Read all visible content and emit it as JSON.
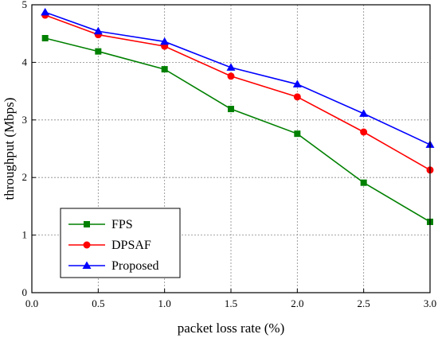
{
  "chart_data": {
    "type": "line",
    "title": "",
    "xlabel": "packet loss rate (%)",
    "ylabel": "throughput (Mbps)",
    "xlim": [
      0.0,
      3.0
    ],
    "ylim": [
      0,
      5
    ],
    "xticks": [
      "0.0",
      "0.5",
      "1.0",
      "1.5",
      "2.0",
      "2.5",
      "3.0"
    ],
    "yticks": [
      "0",
      "1",
      "2",
      "3",
      "4",
      "5"
    ],
    "grid": true,
    "legend_position": "bottom-left",
    "x": [
      0.1,
      0.5,
      1.0,
      1.5,
      2.0,
      2.5,
      3.0
    ],
    "series": [
      {
        "name": "FPS",
        "values": [
          4.42,
          4.19,
          3.88,
          3.19,
          2.76,
          1.91,
          1.23
        ],
        "color": "#008000",
        "marker": "square"
      },
      {
        "name": "DPSAF",
        "values": [
          4.82,
          4.48,
          4.28,
          3.76,
          3.4,
          2.79,
          2.13
        ],
        "color": "#ff0000",
        "marker": "circle"
      },
      {
        "name": "Proposed",
        "values": [
          4.87,
          4.54,
          4.36,
          3.91,
          3.62,
          3.11,
          2.57
        ],
        "color": "#0000ff",
        "marker": "triangle"
      }
    ]
  }
}
